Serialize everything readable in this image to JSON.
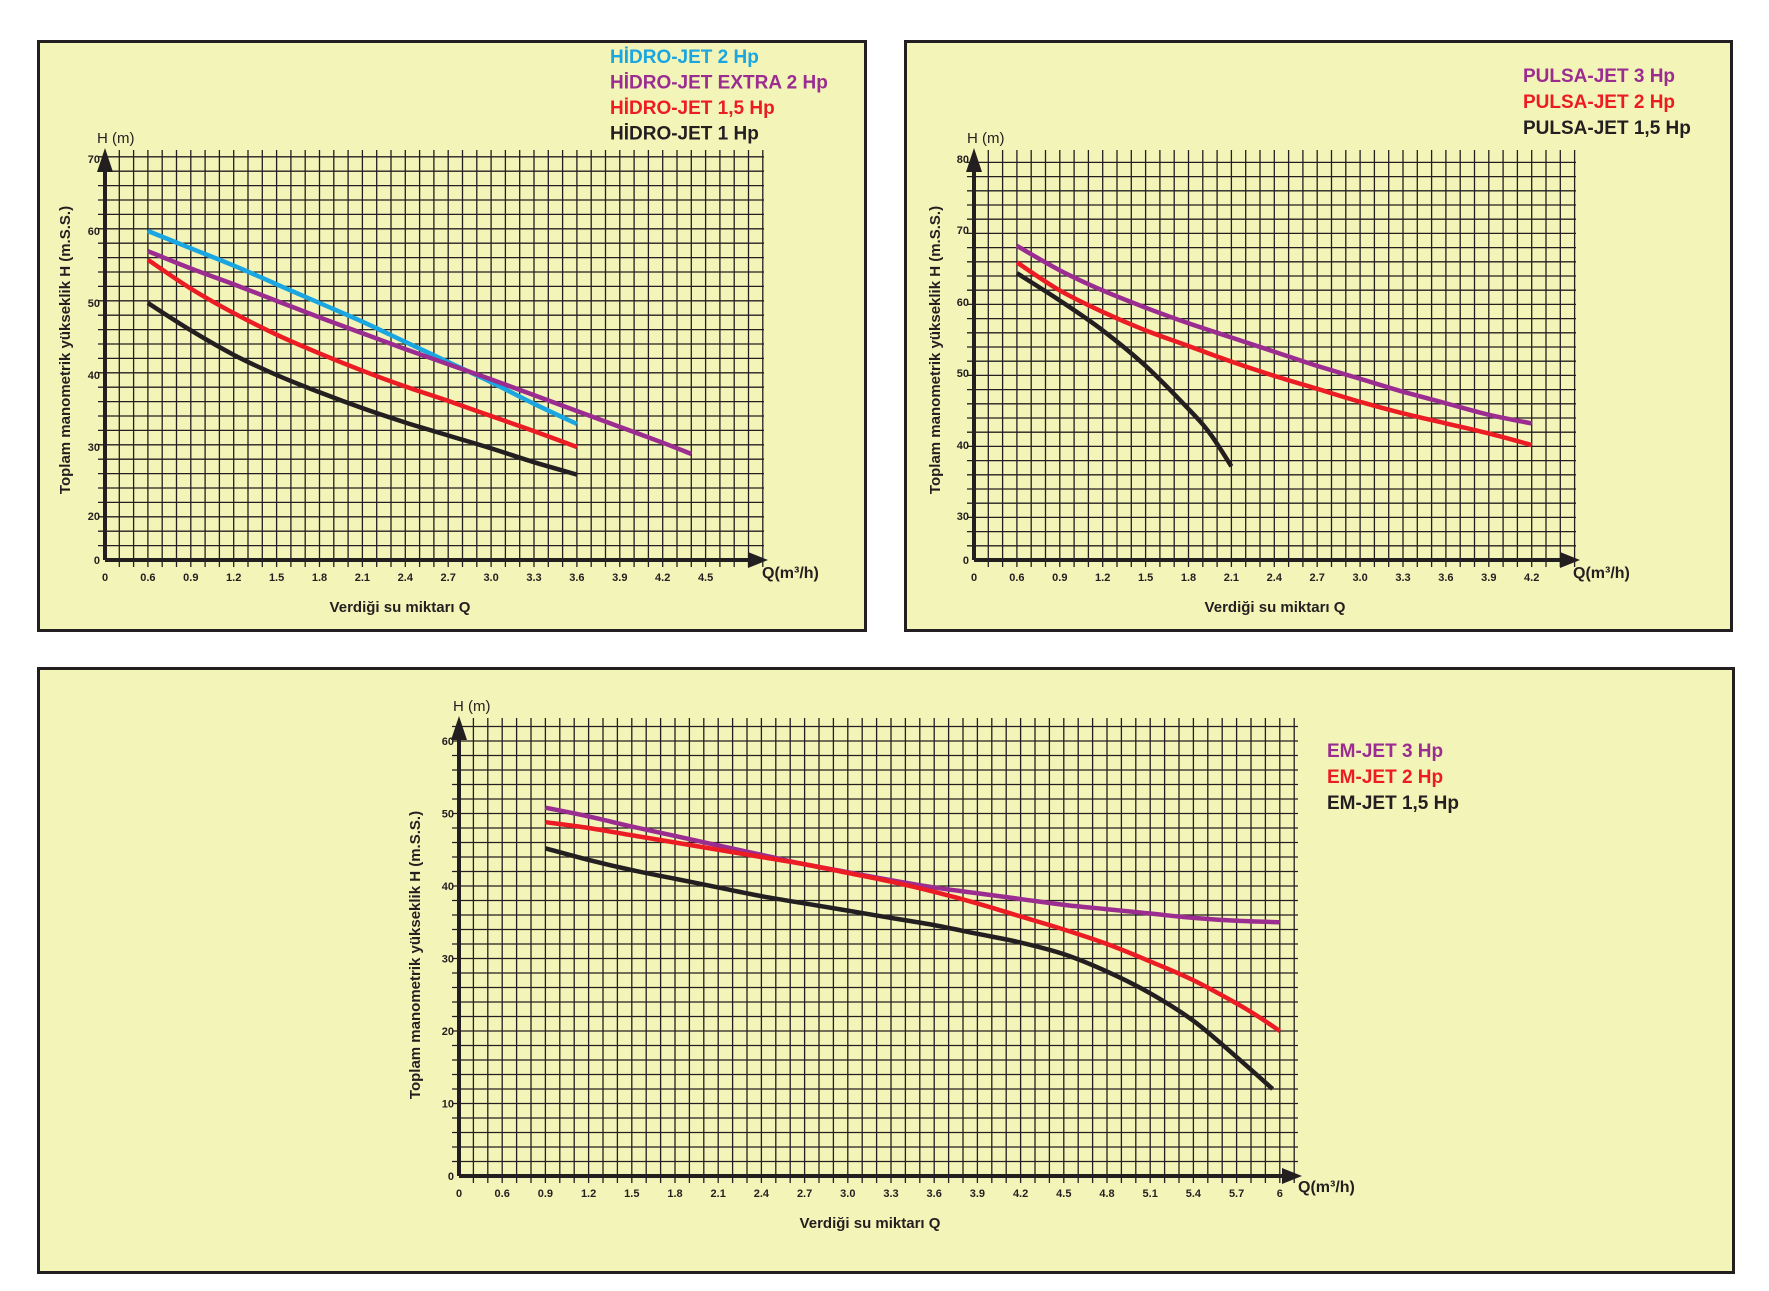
{
  "colors": {
    "panel_bg": "#f2f4b8",
    "grid": "#231f20",
    "cyan": "#1aa6e0",
    "purple": "#9b2d91",
    "red": "#ec1c24",
    "black": "#231f20"
  },
  "chart_data": [
    {
      "type": "line",
      "title": "",
      "xlabel": "Verdiği su miktarı Q",
      "x_unit_label": "Q(m³/h)",
      "ylabel": "Toplam manometrik yükseklik H (m.S.S.)",
      "y_unit_label": "H (m)",
      "x_ticks": [
        "0",
        "0.6",
        "0.9",
        "1.2",
        "1.5",
        "1.8",
        "2.1",
        "2.4",
        "2.7",
        "3.0",
        "3.3",
        "3.6",
        "3.9",
        "4.2",
        "4.5"
      ],
      "y_ticks": [
        "0",
        "20",
        "30",
        "40",
        "50",
        "60",
        "70"
      ],
      "xlim": [
        0,
        4.5
      ],
      "ylim": [
        0,
        70
      ],
      "y_axis_break": "0 to 20 compressed",
      "grid": true,
      "legend_position": "top-right",
      "series": [
        {
          "name": "HİDRO-JET 2 Hp",
          "color": "#1aa6e0",
          "x": [
            0.6,
            0.9,
            1.2,
            1.5,
            1.8,
            2.1,
            2.4,
            2.7,
            3.0,
            3.3,
            3.6
          ],
          "y": [
            60,
            57.6,
            55.2,
            52.6,
            50.0,
            47.4,
            44.6,
            41.8,
            39.0,
            36.0,
            33.2
          ]
        },
        {
          "name": "HİDRO-JET EXTRA 2 Hp",
          "color": "#9b2d91",
          "x": [
            0.6,
            0.9,
            1.2,
            1.5,
            1.8,
            2.1,
            2.4,
            2.7,
            3.0,
            3.3,
            3.6,
            3.9,
            4.2,
            4.4
          ],
          "y": [
            57.2,
            54.8,
            52.6,
            50.3,
            48.0,
            45.8,
            43.6,
            41.5,
            39.4,
            37.2,
            35.0,
            32.8,
            30.6,
            29.0
          ]
        },
        {
          "name": "HİDRO-JET 1,5 Hp",
          "color": "#ec1c24",
          "x": [
            0.6,
            0.9,
            1.2,
            1.5,
            1.8,
            2.1,
            2.4,
            2.7,
            3.0,
            3.3,
            3.6
          ],
          "y": [
            56.0,
            52.0,
            48.6,
            45.6,
            43.0,
            40.6,
            38.4,
            36.4,
            34.3,
            32.2,
            30.0
          ]
        },
        {
          "name": "HİDRO-JET 1 Hp",
          "color": "#231f20",
          "x": [
            0.6,
            0.9,
            1.2,
            1.5,
            1.8,
            2.1,
            2.4,
            2.7,
            3.0,
            3.3,
            3.6
          ],
          "y": [
            50.0,
            46.2,
            42.8,
            40.0,
            37.6,
            35.4,
            33.4,
            31.6,
            29.8,
            27.8,
            26.0
          ]
        }
      ]
    },
    {
      "type": "line",
      "title": "",
      "xlabel": "Verdiği su miktarı Q",
      "x_unit_label": "Q(m³/h)",
      "ylabel": "Toplam manometrik yükseklik H (m.S.S.)",
      "y_unit_label": "H (m)",
      "x_ticks": [
        "0",
        "0.6",
        "0.9",
        "1.2",
        "1.5",
        "1.8",
        "2.1",
        "2.4",
        "2.7",
        "3.0",
        "3.3",
        "3.6",
        "3.9",
        "4.2"
      ],
      "y_ticks": [
        "0",
        "30",
        "40",
        "50",
        "60",
        "70",
        "80"
      ],
      "xlim": [
        0,
        4.2
      ],
      "ylim": [
        0,
        80
      ],
      "y_axis_break": "0 to 30 compressed",
      "grid": true,
      "legend_position": "top-right",
      "series": [
        {
          "name": "PULSA-JET 3 Hp",
          "color": "#9b2d91",
          "x": [
            0.6,
            0.9,
            1.2,
            1.5,
            1.8,
            2.1,
            2.4,
            2.7,
            3.0,
            3.3,
            3.6,
            3.9,
            4.2
          ],
          "y": [
            67.8,
            64.4,
            61.6,
            59.2,
            57.0,
            55.0,
            53.0,
            51.0,
            49.2,
            47.4,
            45.8,
            44.2,
            43.0
          ]
        },
        {
          "name": "PULSA-JET 2 Hp",
          "color": "#ec1c24",
          "x": [
            0.6,
            0.9,
            1.2,
            1.5,
            1.8,
            2.1,
            2.4,
            2.7,
            3.0,
            3.3,
            3.6,
            3.9,
            4.2
          ],
          "y": [
            65.5,
            61.6,
            58.6,
            56.0,
            53.8,
            51.6,
            49.6,
            47.8,
            46.0,
            44.4,
            43.0,
            41.6,
            40.0
          ]
        },
        {
          "name": "PULSA-JET 1,5 Hp",
          "color": "#231f20",
          "x": [
            0.6,
            0.9,
            1.2,
            1.5,
            1.8,
            1.95,
            2.1
          ],
          "y": [
            64.0,
            60.2,
            56.0,
            51.0,
            45.0,
            41.6,
            37.0
          ]
        }
      ]
    },
    {
      "type": "line",
      "title": "",
      "xlabel": "Verdiği su miktarı Q",
      "x_unit_label": "Q(m³/h)",
      "ylabel": "Toplam manometrik yükseklik H (m.S.S.)",
      "y_unit_label": "H (m)",
      "x_ticks": [
        "0",
        "0.6",
        "0.9",
        "1.2",
        "1.5",
        "1.8",
        "2.1",
        "2.4",
        "2.7",
        "3.0",
        "3.3",
        "3.6",
        "3.9",
        "4.2",
        "4.5",
        "4.8",
        "5.1",
        "5.4",
        "5.7",
        "6"
      ],
      "y_ticks": [
        "0",
        "10",
        "20",
        "30",
        "40",
        "50",
        "60"
      ],
      "xlim": [
        0,
        6
      ],
      "ylim": [
        0,
        60
      ],
      "grid": true,
      "legend_position": "right",
      "series": [
        {
          "name": "EM-JET 3 Hp",
          "color": "#9b2d91",
          "x": [
            0.9,
            1.2,
            1.5,
            1.8,
            2.1,
            2.4,
            2.7,
            3.0,
            3.3,
            3.6,
            3.9,
            4.2,
            4.5,
            4.8,
            5.1,
            5.4,
            5.7,
            6.0
          ],
          "y": [
            50.8,
            49.6,
            48.2,
            46.9,
            45.6,
            44.3,
            43.0,
            41.9,
            40.8,
            39.8,
            39.0,
            38.2,
            37.4,
            36.8,
            36.2,
            35.6,
            35.2,
            35.0
          ]
        },
        {
          "name": "EM-JET 2 Hp",
          "color": "#ec1c24",
          "x": [
            0.9,
            1.2,
            1.5,
            1.8,
            2.1,
            2.4,
            2.7,
            3.0,
            3.3,
            3.6,
            3.9,
            4.2,
            4.5,
            4.8,
            5.1,
            5.4,
            5.7,
            5.85,
            6.0
          ],
          "y": [
            48.8,
            48.0,
            47.0,
            46.0,
            45.0,
            44.0,
            43.0,
            41.8,
            40.6,
            39.2,
            37.6,
            35.8,
            34.0,
            32.0,
            29.6,
            27.0,
            23.8,
            22.0,
            20.0
          ]
        },
        {
          "name": "EM-JET 1,5 Hp",
          "color": "#231f20",
          "x": [
            0.9,
            1.2,
            1.5,
            1.8,
            2.1,
            2.4,
            2.7,
            3.0,
            3.3,
            3.6,
            3.9,
            4.2,
            4.5,
            4.8,
            5.1,
            5.4,
            5.7,
            5.95
          ],
          "y": [
            45.2,
            43.6,
            42.2,
            41.0,
            39.8,
            38.6,
            37.6,
            36.6,
            35.6,
            34.6,
            33.4,
            32.2,
            30.6,
            28.2,
            25.2,
            21.4,
            16.4,
            12.0
          ]
        }
      ]
    }
  ]
}
